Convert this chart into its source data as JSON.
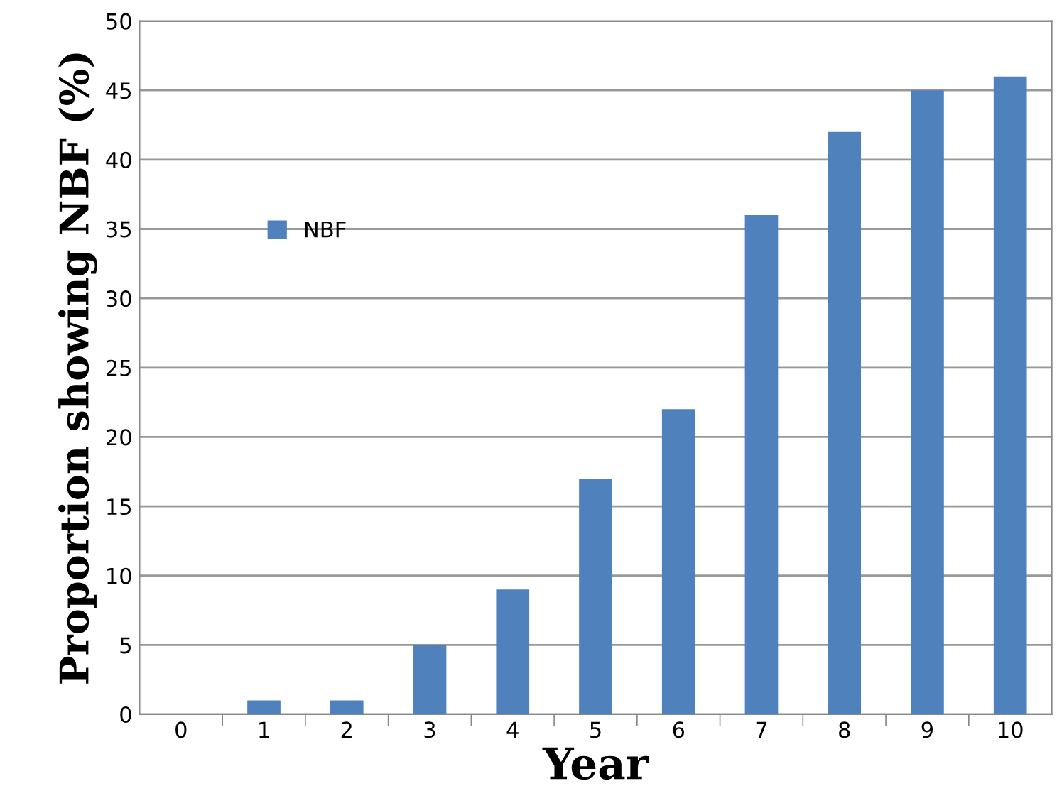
{
  "chart_data": {
    "type": "bar",
    "xlabel": "Year",
    "ylabel": "Proportion showing NBF (%)",
    "categories": [
      "0",
      "1",
      "2",
      "3",
      "4",
      "5",
      "6",
      "7",
      "8",
      "9",
      "10"
    ],
    "series": [
      {
        "name": "NBF",
        "color": "#4f81bd",
        "values": [
          0,
          1,
          1,
          5,
          9,
          17,
          22,
          36,
          42,
          45,
          46
        ]
      }
    ],
    "ylim": [
      0,
      50
    ],
    "yticks": [
      0,
      5,
      10,
      15,
      20,
      25,
      30,
      35,
      40,
      45,
      50
    ],
    "grid": "y",
    "legend": "top left"
  }
}
